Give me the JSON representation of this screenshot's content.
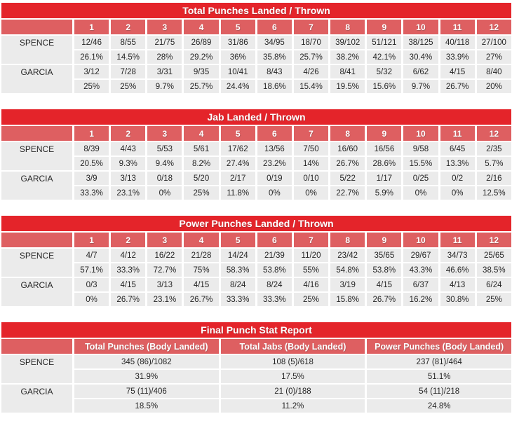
{
  "colors": {
    "title_bar": "#e4242a",
    "round_header": "#de5f61",
    "cell_background": "#ebebeb",
    "header_text": "#ffffff",
    "data_text": "#262626",
    "page_background": "#ffffff"
  },
  "round_tables": [
    {
      "title": "Total Punches Landed / Thrown",
      "rounds": [
        "1",
        "2",
        "3",
        "4",
        "5",
        "6",
        "7",
        "8",
        "9",
        "10",
        "11",
        "12"
      ],
      "fighters": [
        {
          "name": "SPENCE",
          "landed_thrown": [
            "12/46",
            "8/55",
            "21/75",
            "26/89",
            "31/86",
            "34/95",
            "18/70",
            "39/102",
            "51/121",
            "38/125",
            "40/118",
            "27/100"
          ],
          "accuracy": [
            "26.1%",
            "14.5%",
            "28%",
            "29.2%",
            "36%",
            "35.8%",
            "25.7%",
            "38.2%",
            "42.1%",
            "30.4%",
            "33.9%",
            "27%"
          ]
        },
        {
          "name": "GARCIA",
          "landed_thrown": [
            "3/12",
            "7/28",
            "3/31",
            "9/35",
            "10/41",
            "8/43",
            "4/26",
            "8/41",
            "5/32",
            "6/62",
            "4/15",
            "8/40"
          ],
          "accuracy": [
            "25%",
            "25%",
            "9.7%",
            "25.7%",
            "24.4%",
            "18.6%",
            "15.4%",
            "19.5%",
            "15.6%",
            "9.7%",
            "26.7%",
            "20%"
          ]
        }
      ]
    },
    {
      "title": "Jab Landed / Thrown",
      "rounds": [
        "1",
        "2",
        "3",
        "4",
        "5",
        "6",
        "7",
        "8",
        "9",
        "10",
        "11",
        "12"
      ],
      "fighters": [
        {
          "name": "SPENCE",
          "landed_thrown": [
            "8/39",
            "4/43",
            "5/53",
            "5/61",
            "17/62",
            "13/56",
            "7/50",
            "16/60",
            "16/56",
            "9/58",
            "6/45",
            "2/35"
          ],
          "accuracy": [
            "20.5%",
            "9.3%",
            "9.4%",
            "8.2%",
            "27.4%",
            "23.2%",
            "14%",
            "26.7%",
            "28.6%",
            "15.5%",
            "13.3%",
            "5.7%"
          ]
        },
        {
          "name": "GARCIA",
          "landed_thrown": [
            "3/9",
            "3/13",
            "0/18",
            "5/20",
            "2/17",
            "0/19",
            "0/10",
            "5/22",
            "1/17",
            "0/25",
            "0/2",
            "2/16"
          ],
          "accuracy": [
            "33.3%",
            "23.1%",
            "0%",
            "25%",
            "11.8%",
            "0%",
            "0%",
            "22.7%",
            "5.9%",
            "0%",
            "0%",
            "12.5%"
          ]
        }
      ]
    },
    {
      "title": "Power Punches Landed / Thrown",
      "rounds": [
        "1",
        "2",
        "3",
        "4",
        "5",
        "6",
        "7",
        "8",
        "9",
        "10",
        "11",
        "12"
      ],
      "fighters": [
        {
          "name": "SPENCE",
          "landed_thrown": [
            "4/7",
            "4/12",
            "16/22",
            "21/28",
            "14/24",
            "21/39",
            "11/20",
            "23/42",
            "35/65",
            "29/67",
            "34/73",
            "25/65"
          ],
          "accuracy": [
            "57.1%",
            "33.3%",
            "72.7%",
            "75%",
            "58.3%",
            "53.8%",
            "55%",
            "54.8%",
            "53.8%",
            "43.3%",
            "46.6%",
            "38.5%"
          ]
        },
        {
          "name": "GARCIA",
          "landed_thrown": [
            "0/3",
            "4/15",
            "3/13",
            "4/15",
            "8/24",
            "8/24",
            "4/16",
            "3/19",
            "4/15",
            "6/37",
            "4/13",
            "6/24"
          ],
          "accuracy": [
            "0%",
            "26.7%",
            "23.1%",
            "26.7%",
            "33.3%",
            "33.3%",
            "25%",
            "15.8%",
            "26.7%",
            "16.2%",
            "30.8%",
            "25%"
          ]
        }
      ]
    }
  ],
  "final_table": {
    "title": "Final Punch Stat Report",
    "columns": [
      "Total Punches (Body Landed)",
      "Total Jabs (Body Landed)",
      "Power Punches (Body Landed)"
    ],
    "fighters": [
      {
        "name": "SPENCE",
        "values": [
          "345 (86)/1082",
          "108 (5)/618",
          "237 (81)/464"
        ],
        "accuracy": [
          "31.9%",
          "17.5%",
          "51.1%"
        ]
      },
      {
        "name": "GARCIA",
        "values": [
          "75 (11)/406",
          "21 (0)/188",
          "54 (11)/218"
        ],
        "accuracy": [
          "18.5%",
          "11.2%",
          "24.8%"
        ]
      }
    ]
  }
}
